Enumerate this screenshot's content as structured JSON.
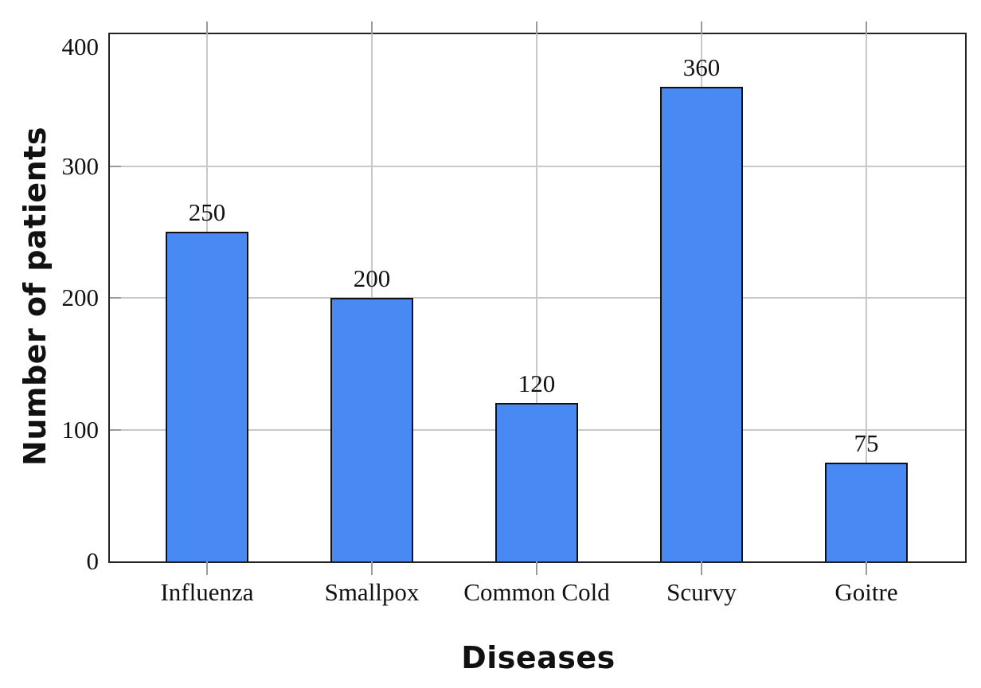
{
  "chart_data": {
    "type": "bar",
    "categories": [
      "Influenza",
      "Smallpox",
      "Common Cold",
      "Scurvy",
      "Goitre"
    ],
    "values": [
      250,
      200,
      120,
      360,
      75
    ],
    "xlabel": "Diseases",
    "ylabel": "Number of patients",
    "ylim": [
      0,
      400
    ],
    "yticks": [
      0,
      100,
      200,
      300,
      400
    ],
    "grid": "both",
    "value_labels_shown": true,
    "legend": "none",
    "colors": {
      "bar_fill": "#4889F4",
      "bar_border": "#111111",
      "gridline": "#C8C8C8",
      "tick_mark": "#9B9B9B",
      "axis_border": "#232323",
      "text": "#111111"
    }
  }
}
